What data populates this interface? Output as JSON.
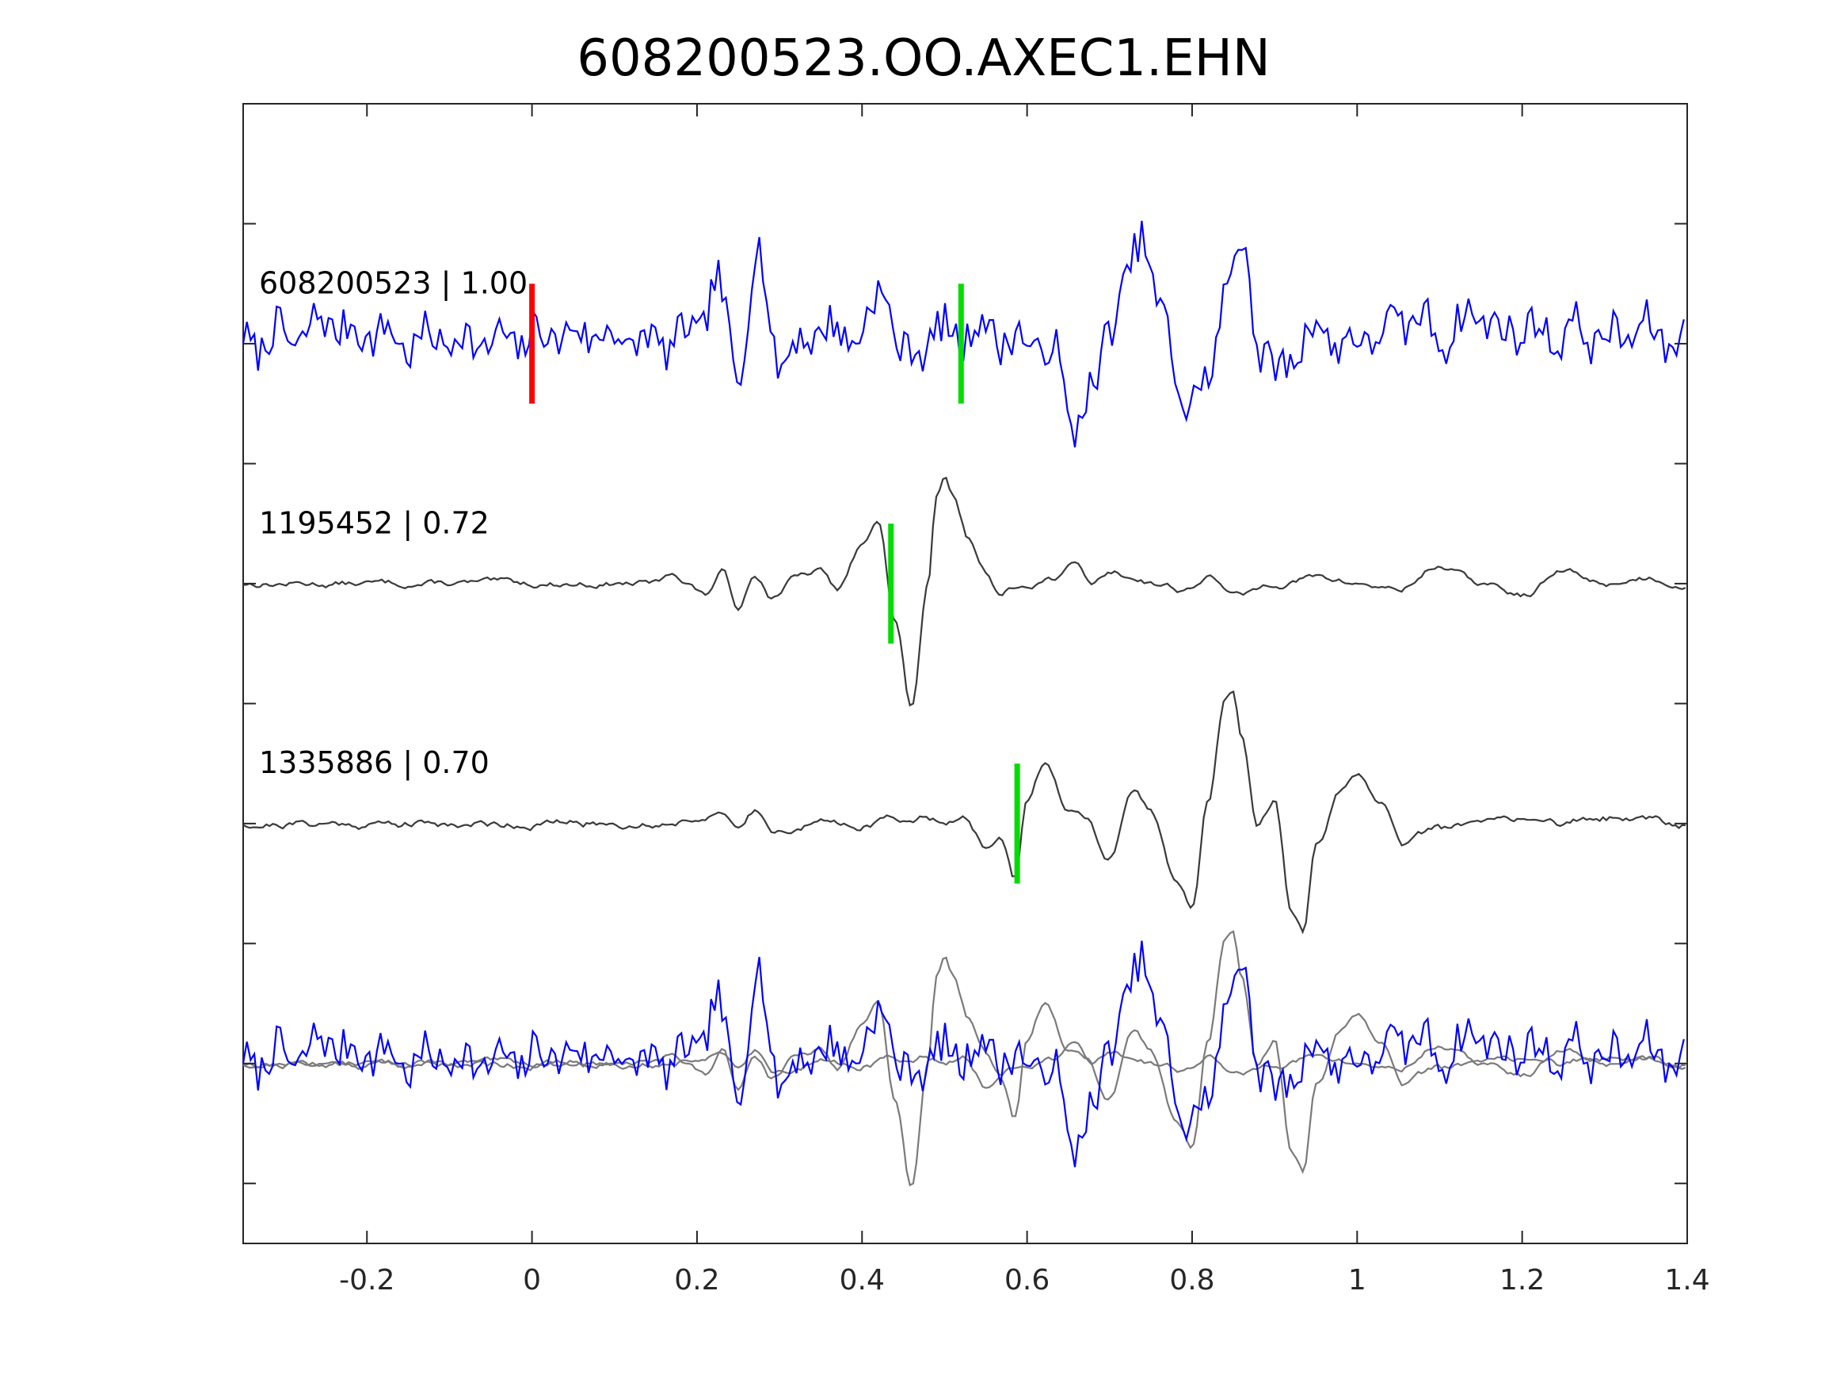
{
  "chart_data": {
    "type": "line",
    "title": "608200523.OO.AXEC1.EHN",
    "xlabel": "",
    "ylabel": "",
    "xlim": [
      -0.35,
      1.4
    ],
    "ylim": [
      -5.5,
      4
    ],
    "xticks": [
      -0.2,
      0,
      0.2,
      0.4,
      0.6,
      0.8,
      1,
      1.2,
      1.4
    ],
    "xtick_labels": [
      "-0.2",
      "0",
      "0.2",
      "0.4",
      "0.6",
      "0.8",
      "1",
      "1.2",
      "1.4"
    ],
    "yticks": [
      -5,
      -4,
      -3,
      -2,
      -1,
      0,
      1,
      2,
      3
    ],
    "ytick_labels_visible": false,
    "grid": false,
    "colors": {
      "target": "#0000ff",
      "template": "#3a3a3a",
      "overlay_template": "#7a7a7a",
      "pick_red": "#ff0000",
      "pick_green": "#00dd00"
    },
    "traces": [
      {
        "label": "608200523 | 1.00",
        "offset": 2,
        "color": "#0000ff",
        "style": "noisy",
        "x": [
          -0.35,
          -0.3,
          -0.25,
          -0.2,
          -0.15,
          -0.1,
          -0.05,
          0.0,
          0.05,
          0.1,
          0.15,
          0.2,
          0.225,
          0.25,
          0.27,
          0.3,
          0.35,
          0.4,
          0.43,
          0.45,
          0.5,
          0.55,
          0.6,
          0.63,
          0.66,
          0.68,
          0.7,
          0.72,
          0.74,
          0.76,
          0.78,
          0.8,
          0.82,
          0.84,
          0.85,
          0.86,
          0.88,
          0.9,
          0.95,
          1.0,
          1.05,
          1.1,
          1.15,
          1.2,
          1.25,
          1.3,
          1.35,
          1.4
        ],
        "y": [
          0.0,
          0.05,
          0.15,
          0.1,
          0.0,
          0.05,
          0.0,
          0.05,
          0.1,
          0.05,
          0.0,
          0.1,
          0.4,
          -0.2,
          0.6,
          -0.1,
          0.1,
          0.1,
          0.4,
          -0.1,
          0.1,
          0.1,
          0.0,
          -0.05,
          -0.6,
          -0.7,
          0.3,
          0.6,
          0.7,
          0.3,
          -0.2,
          -0.6,
          -0.5,
          0.7,
          0.95,
          0.8,
          0.0,
          -0.2,
          0.1,
          0.0,
          0.2,
          0.1,
          0.2,
          0.1,
          0.1,
          0.05,
          0.1,
          0.0
        ],
        "noise_amplitude": 0.16,
        "seed": 7,
        "picks": [
          {
            "x": 0.0,
            "color": "#ff0000"
          },
          {
            "x": 0.52,
            "color": "#00dd00"
          }
        ]
      },
      {
        "label": "1195452 | 0.72",
        "offset": 0,
        "color": "#3a3a3a",
        "style": "smooth",
        "x": [
          -0.35,
          -0.25,
          -0.15,
          -0.05,
          0.05,
          0.1,
          0.15,
          0.17,
          0.19,
          0.21,
          0.23,
          0.25,
          0.27,
          0.29,
          0.32,
          0.35,
          0.37,
          0.4,
          0.42,
          0.44,
          0.46,
          0.48,
          0.49,
          0.5,
          0.51,
          0.53,
          0.55,
          0.57,
          0.58,
          0.6,
          0.63,
          0.66,
          0.68,
          0.7,
          0.73,
          0.76,
          0.79,
          0.82,
          0.84,
          0.86,
          0.9,
          0.95,
          1.0,
          1.05,
          1.1,
          1.15,
          1.2,
          1.25,
          1.3,
          1.35,
          1.4
        ],
        "y": [
          0.0,
          0.0,
          0.0,
          0.0,
          0.0,
          0.0,
          0.0,
          0.1,
          0.0,
          -0.1,
          0.1,
          -0.2,
          0.1,
          -0.1,
          0.05,
          0.1,
          -0.05,
          0.3,
          0.55,
          -0.3,
          -1.05,
          0.0,
          0.7,
          0.85,
          0.7,
          0.35,
          0.1,
          -0.1,
          -0.05,
          0.0,
          0.05,
          0.15,
          0.0,
          0.1,
          0.05,
          0.0,
          -0.05,
          0.05,
          -0.05,
          -0.1,
          0.0,
          0.05,
          0.0,
          -0.05,
          0.15,
          0.0,
          -0.1,
          0.1,
          0.0,
          0.05,
          0.0
        ],
        "noise_amplitude": 0.04,
        "seed": 13,
        "picks": [
          {
            "x": 0.435,
            "color": "#00dd00"
          }
        ]
      },
      {
        "label": "1335886 | 0.70",
        "offset": -2,
        "color": "#3a3a3a",
        "style": "smooth",
        "x": [
          -0.35,
          -0.25,
          -0.15,
          -0.05,
          0.05,
          0.15,
          0.2,
          0.22,
          0.25,
          0.27,
          0.3,
          0.35,
          0.4,
          0.45,
          0.48,
          0.52,
          0.55,
          0.57,
          0.585,
          0.6,
          0.62,
          0.65,
          0.67,
          0.7,
          0.73,
          0.75,
          0.78,
          0.8,
          0.82,
          0.84,
          0.85,
          0.86,
          0.88,
          0.9,
          0.92,
          0.935,
          0.95,
          0.98,
          1.0,
          1.03,
          1.06,
          1.1,
          1.15,
          1.2,
          1.25,
          1.3,
          1.35,
          1.4
        ],
        "y": [
          0.0,
          0.0,
          0.0,
          0.0,
          0.0,
          0.0,
          0.05,
          0.1,
          -0.05,
          0.1,
          -0.05,
          0.0,
          0.0,
          0.05,
          0.05,
          0.05,
          -0.2,
          -0.15,
          -0.45,
          0.2,
          0.5,
          0.1,
          0.05,
          -0.3,
          0.25,
          0.1,
          -0.45,
          -0.7,
          0.2,
          1.05,
          1.1,
          0.7,
          0.0,
          0.2,
          -0.7,
          -0.9,
          -0.2,
          0.25,
          0.35,
          0.15,
          -0.15,
          -0.05,
          0.0,
          0.05,
          0.0,
          0.05,
          0.05,
          0.0
        ],
        "noise_amplitude": 0.05,
        "seed": 21,
        "picks": [
          {
            "x": 0.588,
            "color": "#00dd00"
          }
        ]
      }
    ],
    "overlay": {
      "offset": -4,
      "description_of_content": "stack of all traces",
      "aligned_shifts": [
        0,
        0.0,
        0.0
      ]
    }
  }
}
